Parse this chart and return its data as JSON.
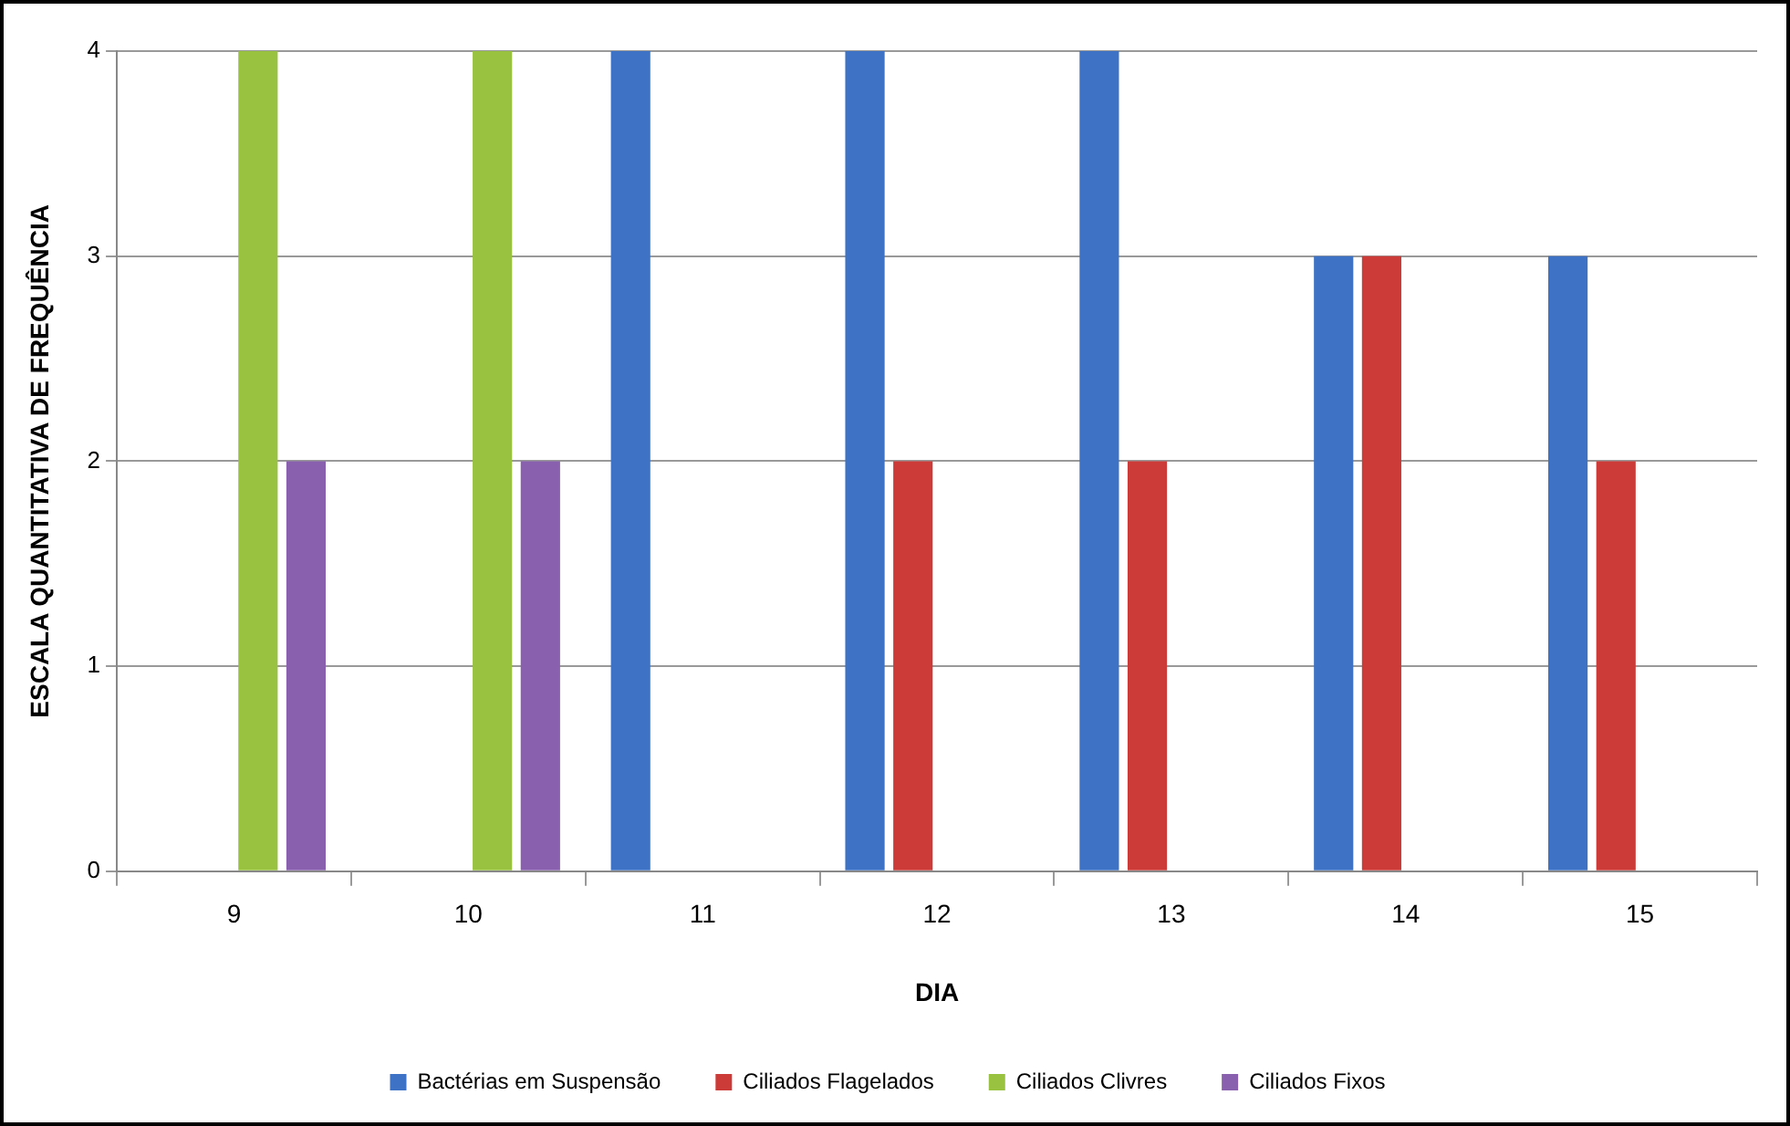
{
  "chart_data": {
    "type": "bar",
    "xlabel": "DIA",
    "ylabel": "ESCALA QUANTITATIVA DE FREQUÊNCIA",
    "categories": [
      "9",
      "10",
      "11",
      "12",
      "13",
      "14",
      "15"
    ],
    "series": [
      {
        "name": "Bactérias em Suspensão",
        "color": "#3d72c4",
        "values": [
          0,
          0,
          4,
          4,
          4,
          3,
          3
        ]
      },
      {
        "name": "Ciliados Flagelados",
        "color": "#cc3b37",
        "values": [
          0,
          0,
          0,
          2,
          2,
          3,
          2
        ]
      },
      {
        "name": "Ciliados Clivres",
        "color": "#98c23f",
        "values": [
          4,
          4,
          0,
          0,
          0,
          0,
          0
        ]
      },
      {
        "name": "Ciliados Fixos",
        "color": "#8960ae",
        "values": [
          2,
          2,
          0,
          0,
          0,
          0,
          0
        ]
      }
    ],
    "ylim": [
      0,
      4
    ],
    "yticks": [
      0,
      1,
      2,
      3,
      4
    ],
    "grid": "y",
    "legend": "bottom"
  }
}
